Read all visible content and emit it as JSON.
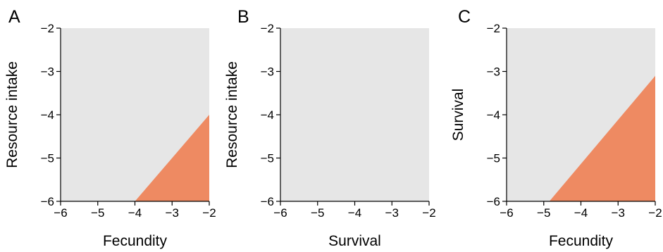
{
  "colors": {
    "background_region": "#e6e6e6",
    "highlight_region": "#ee8a62",
    "axis": "#000000"
  },
  "chart_data": [
    {
      "type": "area",
      "panel_label": "A",
      "xlabel": "Fecundity",
      "ylabel": "Resource intake",
      "xlim": [
        -6,
        -2
      ],
      "ylim": [
        -6,
        -2
      ],
      "xticks": [
        "−6",
        "−5",
        "−4",
        "−3",
        "−2"
      ],
      "yticks": [
        "−6",
        "−5",
        "−4",
        "−3",
        "−2"
      ],
      "grid": false,
      "region_polygon": [
        [
          -4,
          -6
        ],
        [
          -2,
          -6
        ],
        [
          -2,
          -4
        ]
      ]
    },
    {
      "type": "area",
      "panel_label": "B",
      "xlabel": "Survival",
      "ylabel": "Resource intake",
      "xlim": [
        -6,
        -2
      ],
      "ylim": [
        -6,
        -2
      ],
      "xticks": [
        "−6",
        "−5",
        "−4",
        "−3",
        "−2"
      ],
      "yticks": [
        "−6",
        "−5",
        "−4",
        "−3",
        "−2"
      ],
      "grid": false,
      "region_polygon": []
    },
    {
      "type": "area",
      "panel_label": "C",
      "xlabel": "Fecundity",
      "ylabel": "Survival",
      "xlim": [
        -6,
        -2
      ],
      "ylim": [
        -6,
        -2
      ],
      "xticks": [
        "−6",
        "−5",
        "−4",
        "−3",
        "−2"
      ],
      "yticks": [
        "−6",
        "−5",
        "−4",
        "−3",
        "−2"
      ],
      "grid": false,
      "region_polygon": [
        [
          -4.85,
          -6
        ],
        [
          -2,
          -6
        ],
        [
          -2,
          -3.1
        ]
      ]
    }
  ]
}
